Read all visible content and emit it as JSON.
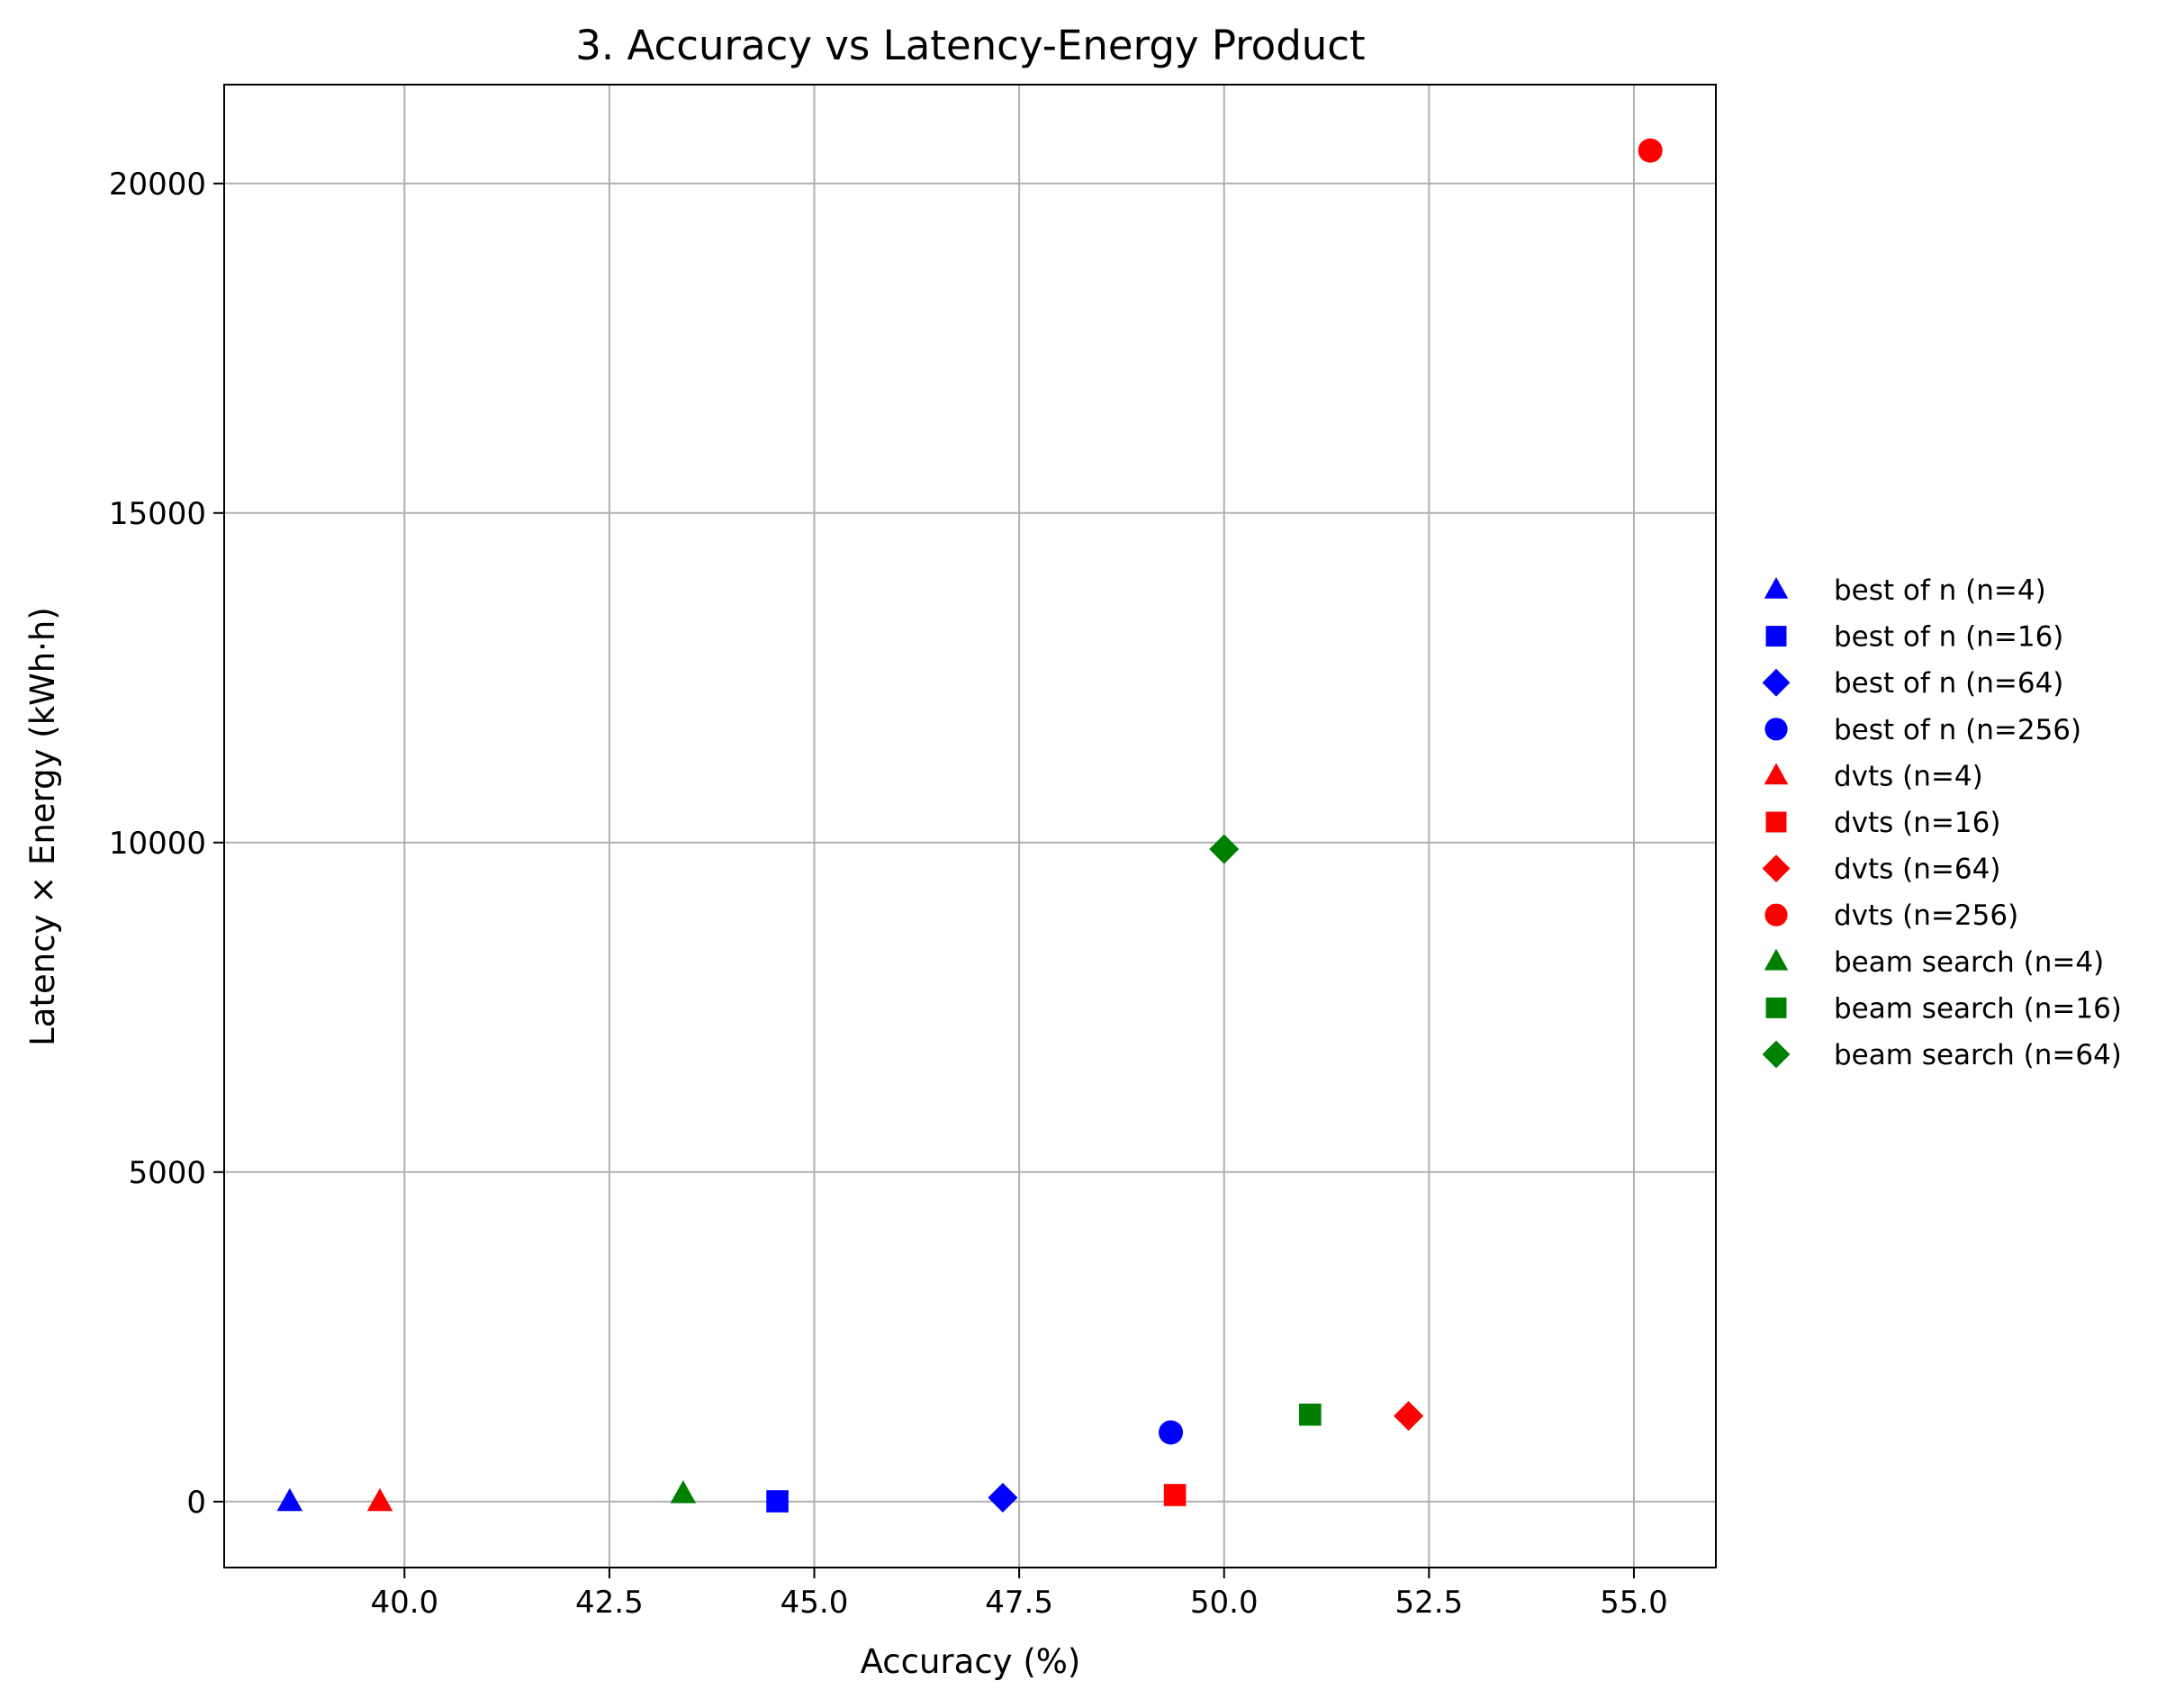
{
  "chart_data": {
    "type": "scatter",
    "title": "3. Accuracy vs Latency-Energy Product",
    "xlabel": "Accuracy (%)",
    "ylabel": "Latency × Energy (kWh·h)",
    "xlim": [
      37.8,
      56.0
    ],
    "ylim": [
      -1000,
      21500
    ],
    "x_ticks": [
      40.0,
      42.5,
      45.0,
      47.5,
      50.0,
      52.5,
      55.0
    ],
    "x_tick_labels": [
      "40.0",
      "42.5",
      "45.0",
      "47.5",
      "50.0",
      "52.5",
      "55.0"
    ],
    "y_ticks": [
      0,
      5000,
      10000,
      15000,
      20000
    ],
    "y_tick_labels": [
      "0",
      "5000",
      "10000",
      "15000",
      "20000"
    ],
    "grid": true,
    "legend_position": "outside-right",
    "series": [
      {
        "name": "best of n (n=4)",
        "color": "#0000ff",
        "marker": "triangle",
        "x": 38.6,
        "y": 0
      },
      {
        "name": "best of n (n=16)",
        "color": "#0000ff",
        "marker": "square",
        "x": 44.55,
        "y": 5
      },
      {
        "name": "best of n (n=64)",
        "color": "#0000ff",
        "marker": "diamond",
        "x": 47.3,
        "y": 60
      },
      {
        "name": "best of n (n=256)",
        "color": "#0000ff",
        "marker": "circle",
        "x": 49.35,
        "y": 1050
      },
      {
        "name": "dvts (n=4)",
        "color": "#ff0000",
        "marker": "triangle",
        "x": 39.7,
        "y": 0
      },
      {
        "name": "dvts (n=16)",
        "color": "#ff0000",
        "marker": "square",
        "x": 49.4,
        "y": 100
      },
      {
        "name": "dvts (n=64)",
        "color": "#ff0000",
        "marker": "diamond",
        "x": 52.25,
        "y": 1300
      },
      {
        "name": "dvts (n=256)",
        "color": "#ff0000",
        "marker": "circle",
        "x": 55.2,
        "y": 20500
      },
      {
        "name": "beam search (n=4)",
        "color": "#008000",
        "marker": "triangle",
        "x": 43.4,
        "y": 120
      },
      {
        "name": "beam search (n=16)",
        "color": "#008000",
        "marker": "square",
        "x": 51.05,
        "y": 1320
      },
      {
        "name": "beam search (n=64)",
        "color": "#008000",
        "marker": "diamond",
        "x": 50.0,
        "y": 9900
      }
    ]
  }
}
